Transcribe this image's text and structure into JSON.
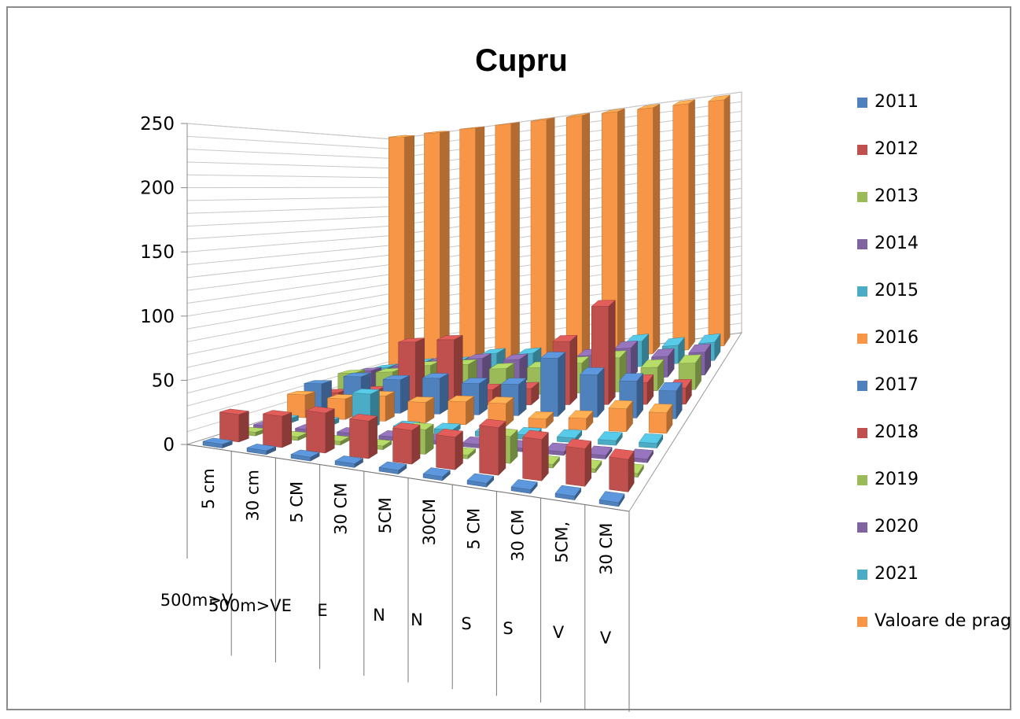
{
  "chart_data": {
    "type": "bar",
    "variant": "3d-column",
    "title": "Cupru",
    "ylim": [
      0,
      250
    ],
    "yticks": [
      "0",
      "50",
      "100",
      "150",
      "200",
      "250"
    ],
    "grid": true,
    "legend_position": "right",
    "categories_level1": [
      "5 cm",
      "30 cm",
      "5 CM",
      "30 CM",
      "5CM",
      "30CM",
      "5 CM",
      "30 CM",
      "5CM,",
      "30 CM"
    ],
    "categories_level2": [
      "500m>V",
      "500m>VE",
      "E",
      "N",
      "N",
      "S",
      "S",
      "V",
      "V"
    ],
    "series": [
      {
        "name": "2011",
        "color": "#4f81bd",
        "values": [
          3,
          3,
          3,
          3,
          3,
          3,
          3,
          3,
          3,
          3
        ]
      },
      {
        "name": "2012",
        "color": "#c0504d",
        "values": [
          22,
          25,
          32,
          30,
          27,
          26,
          38,
          33,
          30,
          26
        ]
      },
      {
        "name": "2013",
        "color": "#9bbb59",
        "values": [
          3,
          3,
          3,
          3,
          20,
          3,
          22,
          3,
          3,
          3
        ]
      },
      {
        "name": "2014",
        "color": "#8064a2",
        "values": [
          3,
          3,
          3,
          3,
          3,
          3,
          3,
          3,
          3,
          3
        ]
      },
      {
        "name": "2015",
        "color": "#4bacc6",
        "values": [
          4,
          4,
          30,
          4,
          4,
          4,
          4,
          4,
          4,
          4
        ]
      },
      {
        "name": "2016",
        "color": "#f79646",
        "values": [
          20,
          18,
          22,
          18,
          20,
          20,
          8,
          10,
          20,
          18
        ]
      },
      {
        "name": "2017",
        "color": "#4f81bd",
        "values": [
          25,
          32,
          30,
          32,
          28,
          28,
          52,
          38,
          33,
          25
        ]
      },
      {
        "name": "2018",
        "color": "#c0504d",
        "values": [
          12,
          14,
          58,
          60,
          14,
          15,
          58,
          90,
          20,
          15
        ]
      },
      {
        "name": "2019",
        "color": "#9bbb59",
        "values": [
          25,
          25,
          30,
          30,
          25,
          25,
          28,
          32,
          22,
          25
        ]
      },
      {
        "name": "2020",
        "color": "#8064a2",
        "values": [
          22,
          25,
          28,
          28,
          25,
          22,
          25,
          30,
          20,
          22
        ]
      },
      {
        "name": "2021",
        "color": "#4bacc6",
        "values": [
          20,
          22,
          20,
          25,
          22,
          20,
          20,
          25,
          18,
          18
        ]
      },
      {
        "name": "Valoare de prag",
        "color": "#f79646",
        "values": [
          250,
          250,
          250,
          250,
          250,
          250,
          250,
          250,
          250,
          250
        ]
      }
    ]
  }
}
